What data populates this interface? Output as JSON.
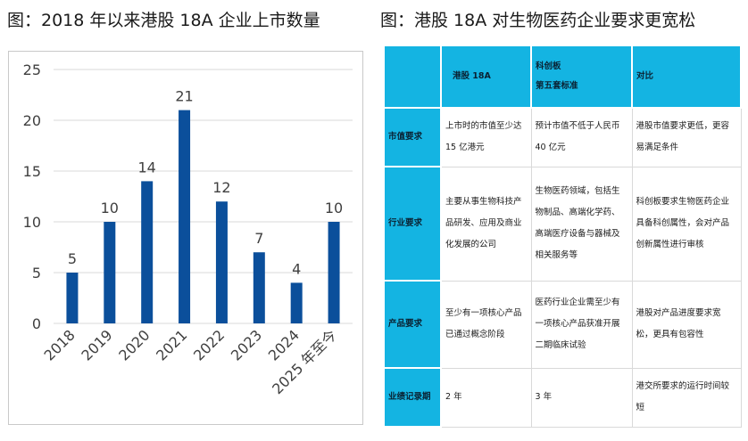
{
  "left_title": "图：2018 年以来港股 18A 企业上市数量",
  "right_title": "图：港股 18A 对生物医药企业要求更宽松",
  "chart_data": {
    "type": "bar",
    "categories": [
      "2018",
      "2019",
      "2020",
      "2021",
      "2022",
      "2023",
      "2024",
      "2025 年至今"
    ],
    "values": [
      5,
      10,
      14,
      21,
      12,
      7,
      4,
      10
    ],
    "ylim": [
      0,
      25
    ],
    "yticks": [
      0,
      5,
      10,
      15,
      20,
      25
    ],
    "grid": true,
    "bar_color": "#0b4f9b",
    "title": "",
    "xlabel": "",
    "ylabel": ""
  },
  "table": {
    "headers": [
      "",
      "港股 18A",
      "科创板\n第五套标准",
      "对比"
    ],
    "rows": [
      {
        "label": "市值要求",
        "hk": "上市时的市值至少达 15 亿港元",
        "star": "预计市值不低于人民币 40 亿元",
        "compare": "港股市值要求更低，更容易满足条件"
      },
      {
        "label": "行业要求",
        "hk": "主要从事生物科技产品研发、应用及商业化发展的公司",
        "star": "生物医药领域，包括生物制品、高端化学药、高端医疗设备与器械及相关服务等",
        "compare": "科创板要求生物医药企业具备科创属性，会对产品创新属性进行审核"
      },
      {
        "label": "产品要求",
        "hk": "至少有一项核心产品已通过概念阶段",
        "star": "医药行业企业需至少有一项核心产品获准开展二期临床试验",
        "compare": "港股对产品进度要求宽松，更具有包容性"
      },
      {
        "label": "业绩记录期",
        "hk": "2 年",
        "star": "3 年",
        "compare": "港交所要求的运行时间较短"
      }
    ]
  }
}
